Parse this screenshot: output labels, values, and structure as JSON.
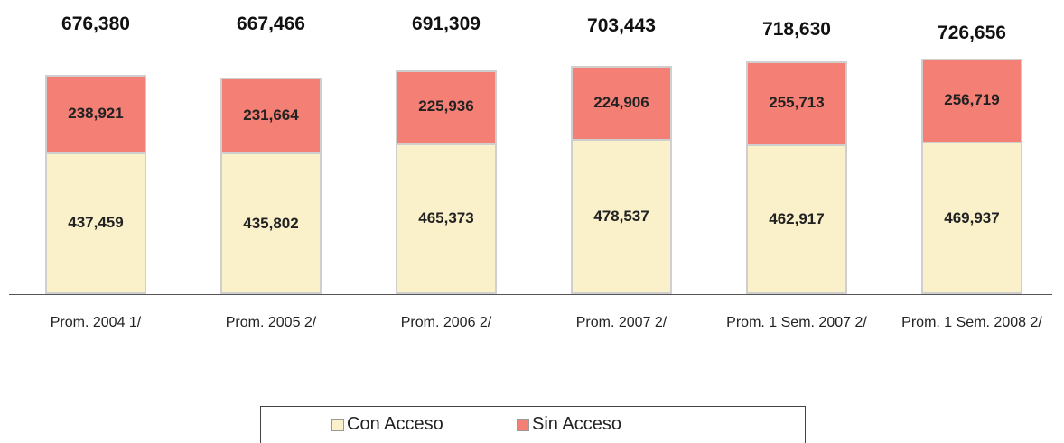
{
  "chart_data": {
    "type": "stacked-bar",
    "categories": [
      "Prom. 2004 1/",
      "Prom. 2005 2/",
      "Prom. 2006 2/",
      "Prom. 2007 2/",
      "Prom. 1 Sem. 2007 2/",
      "Prom. 1 Sem. 2008 2/"
    ],
    "series": [
      {
        "name": "Con Acceso",
        "color": "#faf1cb",
        "values": [
          437459,
          435802,
          465373,
          478537,
          462917,
          469937
        ],
        "value_labels": [
          "437,459",
          "435,802",
          "465,373",
          "478,537",
          "462,917",
          "469,937"
        ]
      },
      {
        "name": "Sin Acceso",
        "color": "#f47f74",
        "values": [
          238921,
          231664,
          225936,
          224906,
          255713,
          256719
        ],
        "value_labels": [
          "238,921",
          "231,664",
          "225,936",
          "224,906",
          "255,713",
          "256,719"
        ]
      }
    ],
    "totals": [
      676380,
      667466,
      691309,
      703443,
      718630,
      726656
    ],
    "total_labels": [
      "676,380",
      "667,466",
      "691,309",
      "703,443",
      "718,630",
      "726,656"
    ]
  }
}
